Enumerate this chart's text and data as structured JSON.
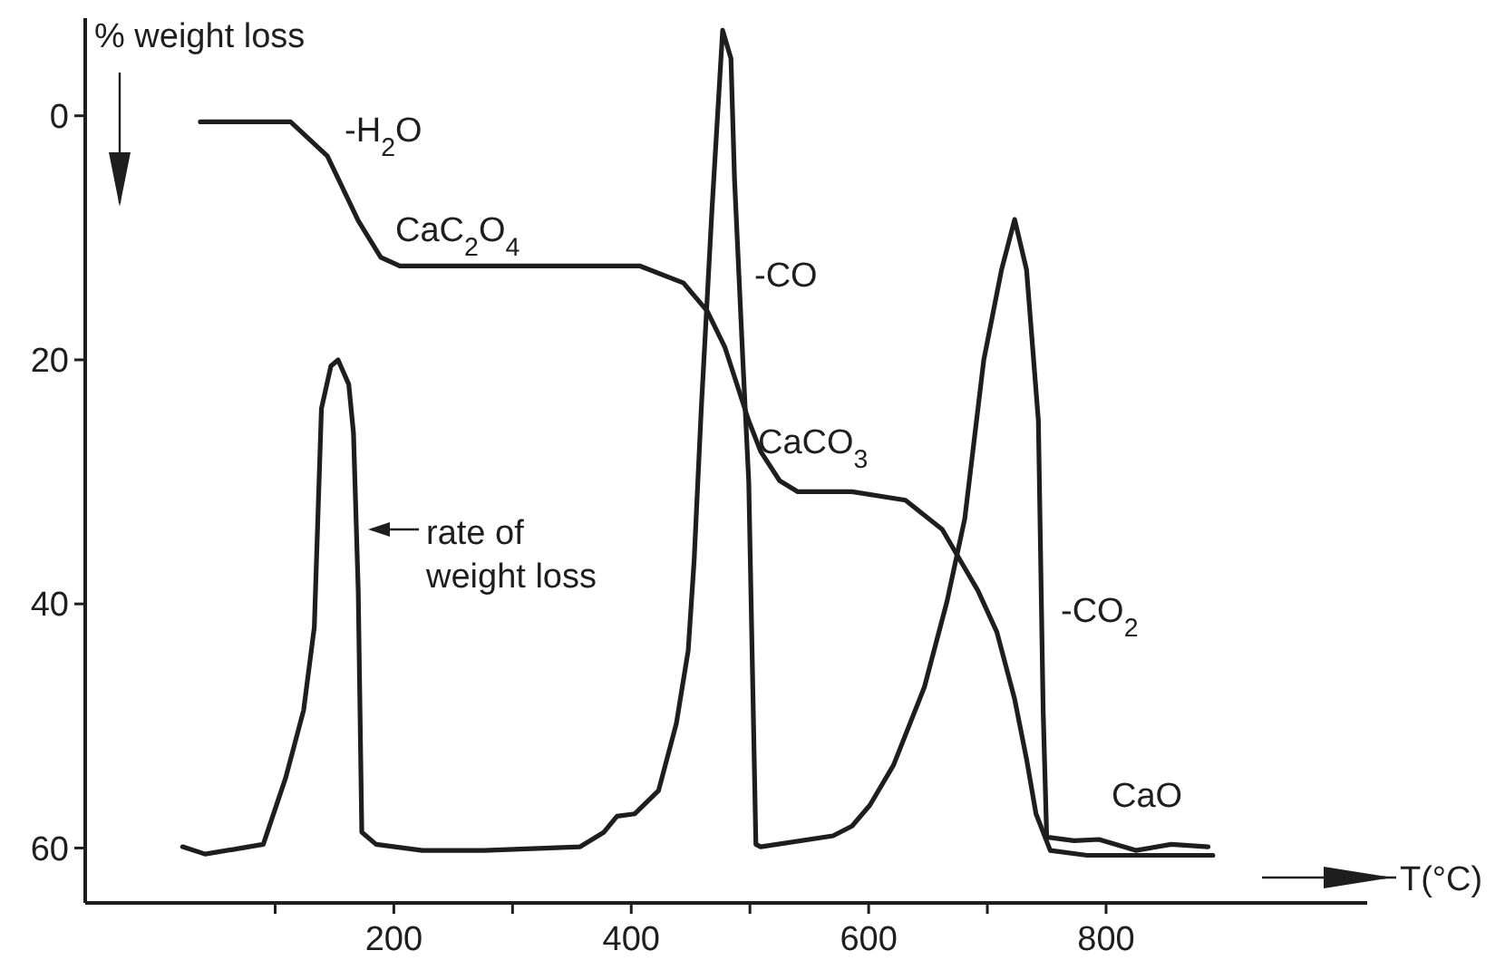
{
  "chart_data": {
    "type": "line",
    "ylabel": "% weight loss",
    "xlabel": "T(°C)",
    "xlim": [
      -60,
      1020
    ],
    "ylim": [
      64.5,
      -8
    ],
    "xticks": [
      {
        "value": 100,
        "label": null
      },
      200,
      {
        "value": 300,
        "label": null
      },
      400,
      {
        "value": 500,
        "label": null
      },
      600,
      {
        "value": 700,
        "label": null
      },
      800
    ],
    "yticks": [
      0,
      20,
      40,
      60
    ],
    "grid": false,
    "marker": "none",
    "line_style": "solid",
    "series": [
      {
        "color": "#1e1e1e",
        "x": [
          37,
          113,
          144,
          170,
          189,
          205,
          300,
          407,
          444,
          464,
          479,
          499,
          509,
          525,
          540,
          586,
          631,
          662,
          677,
          692,
          708,
          723,
          733,
          741,
          753,
          784,
          890
        ],
        "values": [
          0.5,
          0.5,
          3.3,
          8.6,
          11.6,
          12.3,
          12.3,
          12.3,
          13.7,
          16,
          19,
          25,
          27.5,
          29.9,
          30.8,
          30.8,
          31.5,
          33.9,
          36.4,
          38.9,
          42.3,
          47.8,
          52.7,
          57.2,
          60.2,
          60.6,
          60.6
        ]
      },
      {
        "color": "#1e1e1e",
        "x": [
          22,
          41,
          72,
          90,
          109,
          124,
          133,
          139,
          147,
          153,
          162,
          166,
          170,
          173,
          185,
          224,
          276,
          357,
          377,
          388,
          403,
          423,
          438,
          448,
          453,
          459,
          468,
          477,
          484,
          487,
          494,
          499,
          505,
          509,
          570,
          586,
          601,
          621,
          647,
          666,
          681,
          697,
          712,
          723,
          733,
          743,
          747,
          750,
          773,
          794,
          825,
          855,
          886
        ],
        "values": [
          59.9,
          60.5,
          60,
          59.7,
          54.2,
          48.7,
          41.9,
          24,
          20.5,
          20,
          22,
          26,
          38.9,
          58.7,
          59.7,
          60.2,
          60.2,
          59.9,
          58.7,
          57.4,
          57.2,
          55.3,
          49.8,
          43.8,
          36.4,
          24,
          7.7,
          -7,
          -4.7,
          5.2,
          20,
          30,
          59.7,
          59.9,
          59,
          58.2,
          56.5,
          53.2,
          46.8,
          39.8,
          33,
          20,
          12.6,
          8.5,
          12.6,
          25,
          48.7,
          59.1,
          59.4,
          59.3,
          60.2,
          59.7,
          59.9
        ]
      }
    ],
    "annotations": [
      "-H$_{2}$O",
      "CaC$_{2}$O$_{4}$",
      "-CO",
      "CaCO$_{3}$",
      "rate of\nweight loss",
      "-CO$_{2}$",
      "CaO"
    ]
  }
}
